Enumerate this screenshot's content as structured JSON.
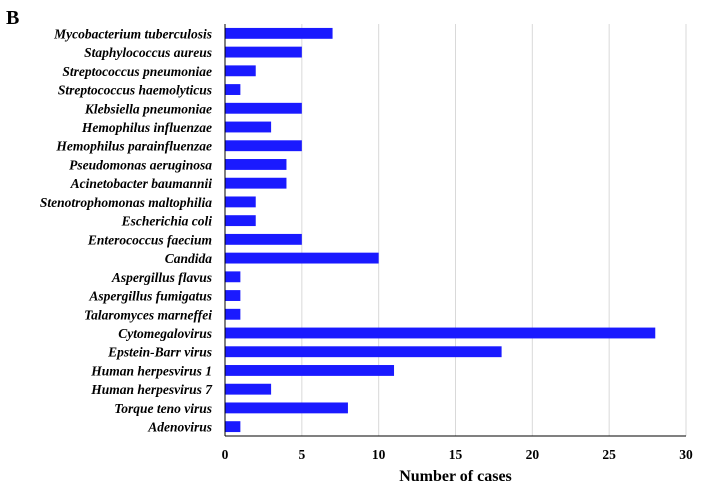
{
  "panel_label": "B",
  "chart_data": {
    "type": "bar",
    "orientation": "horizontal",
    "categories": [
      "Mycobacterium tuberculosis",
      "Staphylococcus aureus",
      "Streptococcus pneumoniae",
      "Streptococcus haemolyticus",
      "Klebsiella pneumoniae",
      "Hemophilus influenzae",
      "Hemophilus parainfluenzae",
      "Pseudomonas aeruginosa",
      "Acinetobacter baumannii",
      "Stenotrophomonas maltophilia",
      "Escherichia coli",
      "Enterococcus faecium",
      "Candida",
      "Aspergillus flavus",
      "Aspergillus fumigatus",
      "Talaromyces marneffei",
      "Cytomegalovirus",
      "Epstein-Barr virus",
      "Human herpesvirus 1",
      "Human herpesvirus 7",
      "Torque teno virus",
      "Adenovirus"
    ],
    "values": [
      7,
      5,
      2,
      1,
      5,
      3,
      5,
      4,
      4,
      2,
      2,
      5,
      10,
      1,
      1,
      1,
      28,
      18,
      11,
      3,
      8,
      1
    ],
    "xlabel": "Number of cases",
    "ylabel": "",
    "xlim": [
      0,
      30
    ],
    "xticks": [
      0,
      5,
      10,
      15,
      20,
      25,
      30
    ],
    "grid": true,
    "bar_color": "#1a1aff"
  }
}
